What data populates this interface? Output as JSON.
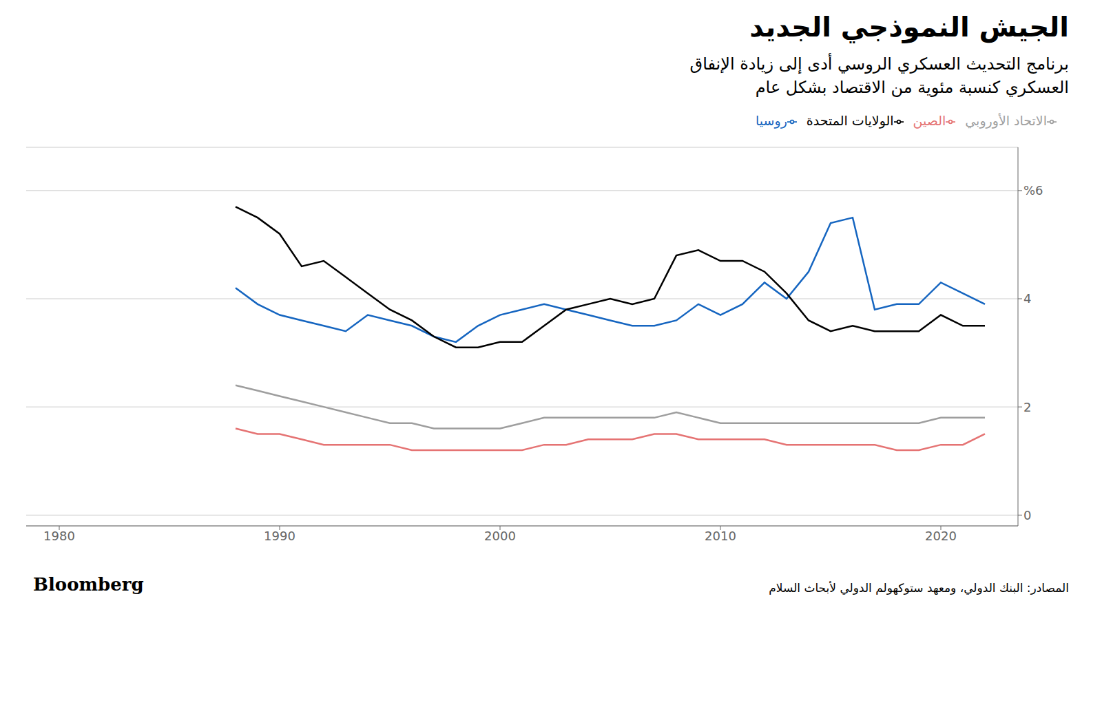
{
  "chart_data": {
    "type": "line",
    "title": "الجيش النموذجي الجديد",
    "subtitle": [
      "برنامج التحديث العسكري الروسي أدى إلى زيادة الإنفاق",
      "العسكري كنسبة مئوية من الاقتصاد بشكل عام"
    ],
    "annotations": [
      "المصادر: البنك الدولي، ومعهد ستوكهولم الدولي لأبحاث السلام",
      "Bloomberg"
    ],
    "x": [
      1988,
      1989,
      1990,
      1991,
      1992,
      1993,
      1994,
      1995,
      1996,
      1997,
      1998,
      1999,
      2000,
      2001,
      2002,
      2003,
      2004,
      2005,
      2006,
      2007,
      2008,
      2009,
      2010,
      2011,
      2012,
      2013,
      2014,
      2015,
      2016,
      2017,
      2018,
      2019,
      2020,
      2021,
      2022
    ],
    "series": [
      {
        "name": "روسيا",
        "color": "#1565c0",
        "values": [
          4.2,
          3.9,
          3.7,
          3.6,
          3.5,
          3.4,
          3.7,
          3.6,
          3.5,
          3.3,
          3.2,
          3.5,
          3.7,
          3.8,
          3.9,
          3.8,
          3.7,
          3.6,
          3.5,
          3.5,
          3.6,
          3.9,
          3.7,
          3.9,
          4.3,
          4.0,
          4.5,
          5.4,
          5.5,
          3.8,
          3.9,
          3.9,
          4.3,
          4.1,
          3.9
        ]
      },
      {
        "name": "الولايات المتحدة",
        "color": "#000000",
        "values": [
          5.7,
          5.5,
          5.2,
          4.6,
          4.7,
          4.4,
          4.1,
          3.8,
          3.6,
          3.3,
          3.1,
          3.1,
          3.2,
          3.2,
          3.5,
          3.8,
          3.9,
          4.0,
          3.9,
          4.0,
          4.8,
          4.9,
          4.7,
          4.7,
          4.5,
          4.1,
          3.6,
          3.4,
          3.5,
          3.4,
          3.4,
          3.4,
          3.7,
          3.5,
          3.5
        ]
      },
      {
        "name": "الصين",
        "color": "#e57373",
        "values": [
          1.6,
          1.5,
          1.5,
          1.4,
          1.3,
          1.3,
          1.3,
          1.3,
          1.2,
          1.2,
          1.2,
          1.2,
          1.2,
          1.2,
          1.3,
          1.3,
          1.4,
          1.4,
          1.4,
          1.5,
          1.5,
          1.4,
          1.4,
          1.4,
          1.4,
          1.3,
          1.3,
          1.3,
          1.3,
          1.3,
          1.2,
          1.2,
          1.3,
          1.3,
          1.5
        ]
      },
      {
        "name": "الاتحاد الأوروبي",
        "color": "#9e9e9e",
        "values": [
          2.4,
          2.3,
          2.2,
          2.1,
          2.0,
          1.9,
          1.8,
          1.7,
          1.7,
          1.6,
          1.6,
          1.6,
          1.6,
          1.7,
          1.8,
          1.8,
          1.8,
          1.8,
          1.8,
          1.8,
          1.9,
          1.8,
          1.7,
          1.7,
          1.7,
          1.7,
          1.7,
          1.7,
          1.7,
          1.7,
          1.7,
          1.7,
          1.8,
          1.8,
          1.8
        ]
      }
    ],
    "xlim": [
      1978.5,
      2023.5
    ],
    "xticks": [
      1980,
      1990,
      2000,
      2010,
      2020
    ],
    "ylim": [
      -0.2,
      6.8
    ],
    "yticks": [
      0,
      2,
      4,
      {
        "value": 6,
        "label": "%6"
      }
    ],
    "grid": true,
    "legend": "top-right"
  }
}
